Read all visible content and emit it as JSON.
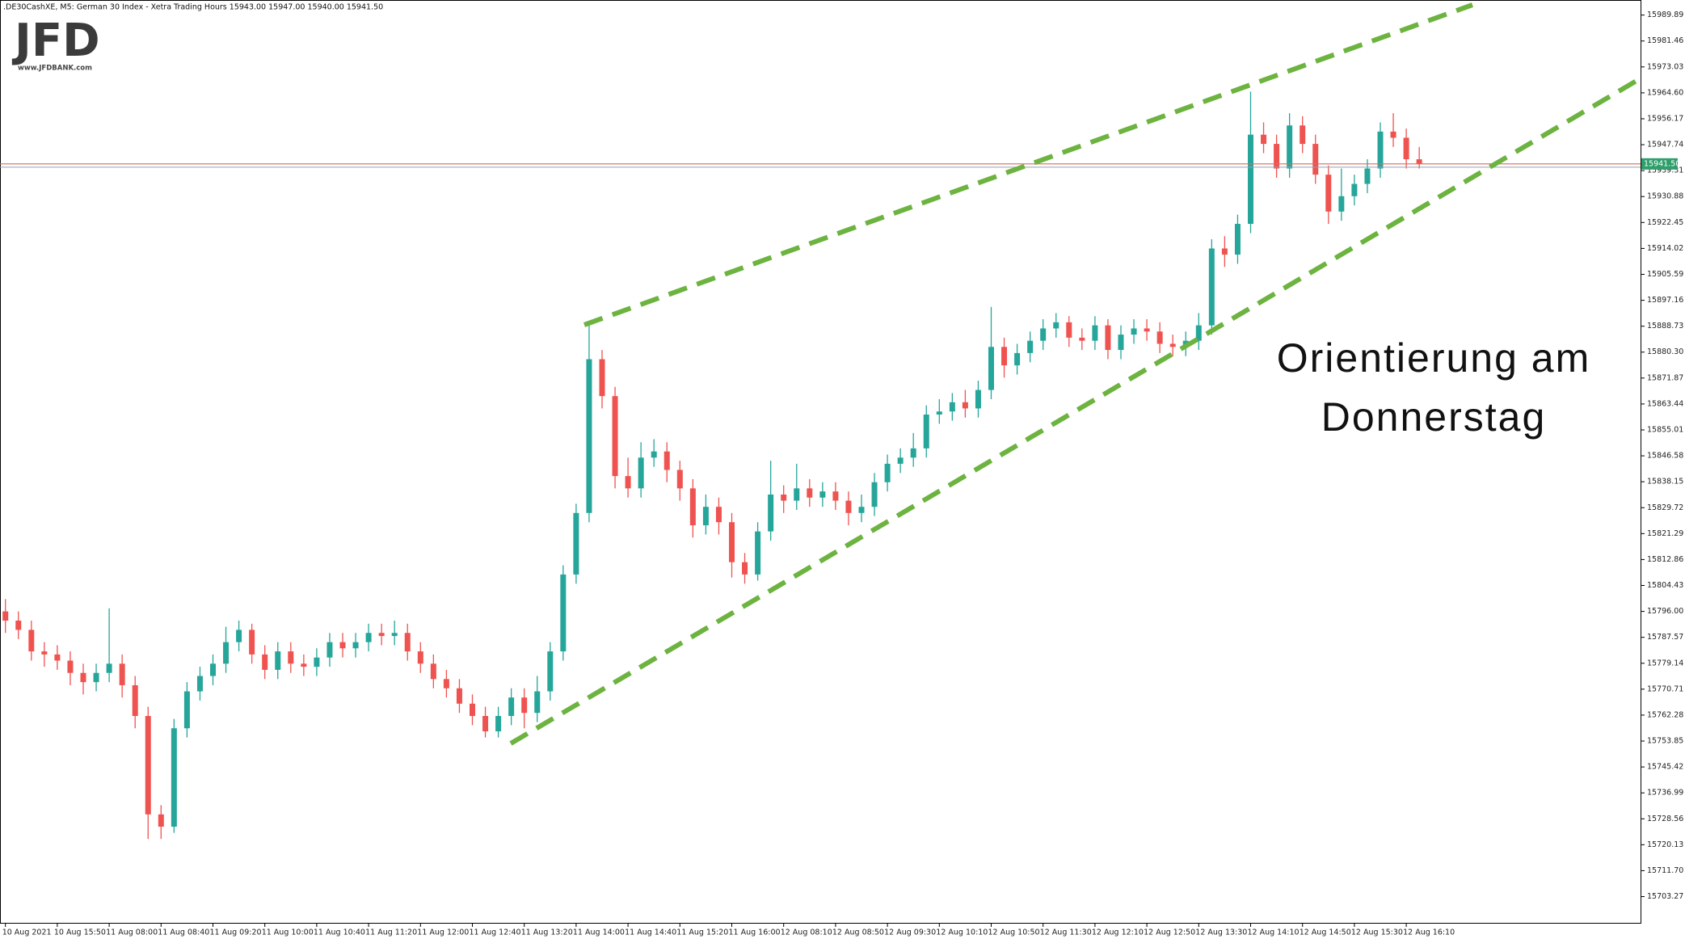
{
  "chart_data": {
    "type": "candlestick",
    "header": ".DE30CashXE, M5:  German 30 Index  - Xetra Trading Hours  15943.00 15947.00 15940.00 15941.50",
    "logo": "JFD",
    "logo_url": "www.JFDBANK.com",
    "annotation": [
      "Orientierung am",
      "Donnerstag"
    ],
    "up_color": "#26a69a",
    "down_color": "#ef5350",
    "current_price": {
      "value": 15941.5,
      "label": "15941.50"
    },
    "current_price_color": "#e0665e",
    "label_color": "#2e9e6b",
    "ylim": [
      15695,
      15994
    ],
    "yticks": [
      15703.27,
      {
        "value": 15711.7,
        "label": "15711.70"
      },
      15720.13,
      15728.56,
      15736.99,
      15745.42,
      15753.85,
      15762.28,
      15770.71,
      15779.14,
      15787.57,
      {
        "value": 15796,
        "label": "15796.00"
      },
      15804.43,
      15812.86,
      15821.29,
      15829.72,
      15838.15,
      15846.58,
      15855.01,
      15863.44,
      15871.87,
      {
        "value": 15880.3,
        "label": "15880.30"
      },
      15888.73,
      15897.16,
      15905.59,
      15914.02,
      15922.45,
      15930.88,
      15939.31,
      15947.74,
      15956.17,
      {
        "value": 15964.6,
        "label": "15964.60"
      },
      15973.03,
      15981.46,
      15989.89
    ],
    "categories": [
      "10 Aug 2021",
      null,
      null,
      null,
      "10 Aug 15:50",
      null,
      null,
      null,
      "11 Aug 08:00",
      null,
      null,
      null,
      "11 Aug 08:40",
      null,
      null,
      null,
      "11 Aug 09:20",
      null,
      null,
      null,
      "11 Aug 10:00",
      null,
      null,
      null,
      "11 Aug 10:40",
      null,
      null,
      null,
      "11 Aug 11:20",
      null,
      null,
      null,
      "11 Aug 12:00",
      null,
      null,
      null,
      "11 Aug 12:40",
      null,
      null,
      null,
      "11 Aug 13:20",
      null,
      null,
      null,
      "11 Aug 14:00",
      null,
      null,
      null,
      "11 Aug 14:40",
      null,
      null,
      null,
      "11 Aug 15:20",
      null,
      null,
      null,
      "11 Aug 16:00",
      null,
      null,
      null,
      "12 Aug 08:10",
      null,
      null,
      null,
      "12 Aug 08:50",
      null,
      null,
      null,
      "12 Aug 09:30",
      null,
      null,
      null,
      "12 Aug 10:10",
      null,
      null,
      null,
      "12 Aug 10:50",
      null,
      null,
      null,
      "12 Aug 11:30",
      null,
      null,
      null,
      "12 Aug 12:10",
      null,
      null,
      null,
      "12 Aug 12:50",
      null,
      null,
      null,
      "12 Aug 13:30",
      null,
      null,
      null,
      "12 Aug 14:10",
      null,
      null,
      null,
      "12 Aug 14:50",
      null,
      null,
      null,
      "12 Aug 15:30",
      null,
      null,
      null,
      "12 Aug 16:10",
      null
    ],
    "open": [
      15796,
      15793,
      15790,
      15783,
      15782,
      15780,
      15776,
      15773,
      15776,
      15779,
      15772,
      15762,
      15730,
      15726,
      15758,
      15770,
      15775,
      15779,
      15786,
      15790,
      15782,
      15777,
      15783,
      15779,
      15778,
      15781,
      15786,
      15784,
      15786,
      15789,
      15788,
      15789,
      15783,
      15779,
      15774,
      15771,
      15766,
      15762,
      15757,
      15762,
      15768,
      15763,
      15770,
      15783,
      15808,
      15828,
      15878,
      15866,
      15840,
      15836,
      15846,
      15848,
      15842,
      15836,
      15824,
      15830,
      15825,
      15812,
      15808,
      15822,
      15834,
      15832,
      15836,
      15833,
      15835,
      15832,
      15828,
      15830,
      15838,
      15844,
      15846,
      15849,
      15860,
      15861,
      15864,
      15862,
      15868,
      15882,
      15876,
      15880,
      15884,
      15888,
      15890,
      15885,
      15884,
      15889,
      15881,
      15886,
      15888,
      15887,
      15883,
      15882,
      15884,
      15889,
      15914,
      15912,
      15922,
      15951,
      15948,
      15940,
      15954,
      15948,
      15938,
      15926,
      15931,
      15935,
      15940,
      15952,
      15950,
      15943
    ],
    "high": [
      15800,
      15796,
      15793,
      15786,
      15785,
      15783,
      15779,
      15779,
      15797,
      15782,
      15775,
      15765,
      15733,
      15761,
      15773,
      15778,
      15782,
      15791,
      15793,
      15792,
      15785,
      15786,
      15786,
      15782,
      15784,
      15789,
      15789,
      15789,
      15792,
      15792,
      15793,
      15792,
      15786,
      15782,
      15777,
      15774,
      15769,
      15765,
      15765,
      15771,
      15771,
      15775,
      15786,
      15811,
      15831,
      15890,
      15881,
      15869,
      15846,
      15851,
      15852,
      15851,
      15845,
      15839,
      15834,
      15833,
      15828,
      15815,
      15825,
      15845,
      15837,
      15844,
      15839,
      15838,
      15838,
      15835,
      15834,
      15841,
      15847,
      15849,
      15854,
      15863,
      15865,
      15867,
      15868,
      15871,
      15895,
      15885,
      15883,
      15887,
      15891,
      15893,
      15892,
      15888,
      15892,
      15891,
      15889,
      15891,
      15891,
      15890,
      15886,
      15887,
      15893,
      15917,
      15918,
      15925,
      15965,
      15955,
      15951,
      15958,
      15957,
      15951,
      15941,
      15940,
      15938,
      15943,
      15955,
      15958,
      15953,
      15947
    ],
    "low": [
      15789,
      15787,
      15780,
      15778,
      15777,
      15772,
      15769,
      15770,
      15773,
      15768,
      15758,
      15722,
      15722,
      15724,
      15755,
      15767,
      15772,
      15776,
      15783,
      15779,
      15774,
      15774,
      15776,
      15775,
      15775,
      15778,
      15781,
      15781,
      15783,
      15785,
      15785,
      15780,
      15776,
      15771,
      15768,
      15763,
      15759,
      15755,
      15755,
      15759,
      15758,
      15760,
      15767,
      15780,
      15805,
      15825,
      15862,
      15836,
      15833,
      15833,
      15843,
      15838,
      15832,
      15820,
      15821,
      15821,
      15807,
      15805,
      15806,
      15819,
      15828,
      15829,
      15830,
      15830,
      15829,
      15824,
      15825,
      15827,
      15835,
      15841,
      15843,
      15846,
      15857,
      15858,
      15859,
      15859,
      15865,
      15872,
      15873,
      15877,
      15881,
      15885,
      15882,
      15881,
      15881,
      15878,
      15878,
      15883,
      15884,
      15880,
      15879,
      15879,
      15881,
      15886,
      15908,
      15909,
      15919,
      15945,
      15937,
      15937,
      15945,
      15935,
      15922,
      15923,
      15928,
      15932,
      15937,
      15947,
      15940,
      15940
    ],
    "close": [
      15793,
      15790,
      15783,
      15782,
      15780,
      15776,
      15773,
      15776,
      15779,
      15772,
      15762,
      15730,
      15726,
      15758,
      15770,
      15775,
      15779,
      15786,
      15790,
      15782,
      15777,
      15783,
      15779,
      15778,
      15781,
      15786,
      15784,
      15786,
      15789,
      15788,
      15789,
      15783,
      15779,
      15774,
      15771,
      15766,
      15762,
      15757,
      15762,
      15768,
      15763,
      15770,
      15783,
      15808,
      15828,
      15878,
      15866,
      15840,
      15836,
      15846,
      15848,
      15842,
      15836,
      15824,
      15830,
      15825,
      15812,
      15808,
      15822,
      15834,
      15832,
      15836,
      15833,
      15835,
      15832,
      15828,
      15830,
      15838,
      15844,
      15846,
      15849,
      15860,
      15861,
      15864,
      15862,
      15868,
      15882,
      15876,
      15880,
      15884,
      15888,
      15890,
      15885,
      15884,
      15889,
      15881,
      15886,
      15888,
      15887,
      15883,
      15882,
      15884,
      15889,
      15914,
      15912,
      15922,
      15951,
      15948,
      15940,
      15954,
      15948,
      15938,
      15926,
      15931,
      15935,
      15940,
      15952,
      15950,
      15943,
      15941.5
    ]
  }
}
